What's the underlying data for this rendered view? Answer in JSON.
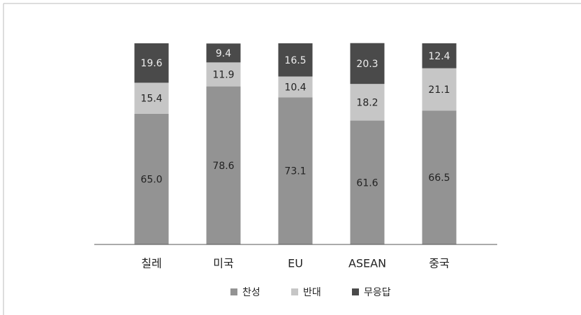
{
  "chart_data": {
    "type": "stacked_bar",
    "categories": [
      "칠레",
      "미국",
      "EU",
      "ASEAN",
      "중국"
    ],
    "series": [
      {
        "name": "찬성",
        "color": "#939393",
        "values": [
          65.0,
          78.6,
          73.1,
          61.6,
          66.5
        ],
        "value_labels": [
          "65.0",
          "78.6",
          "73.1",
          "61.6",
          "66.5"
        ]
      },
      {
        "name": "반대",
        "color": "#c6c6c6",
        "values": [
          15.4,
          11.9,
          10.4,
          18.2,
          21.1
        ]
      },
      {
        "name": "무응답",
        "color": "#4a4a4a",
        "values": [
          19.6,
          9.4,
          16.5,
          20.3,
          12.4
        ]
      }
    ],
    "ylim": [
      0,
      100
    ],
    "legend": "bottom"
  }
}
